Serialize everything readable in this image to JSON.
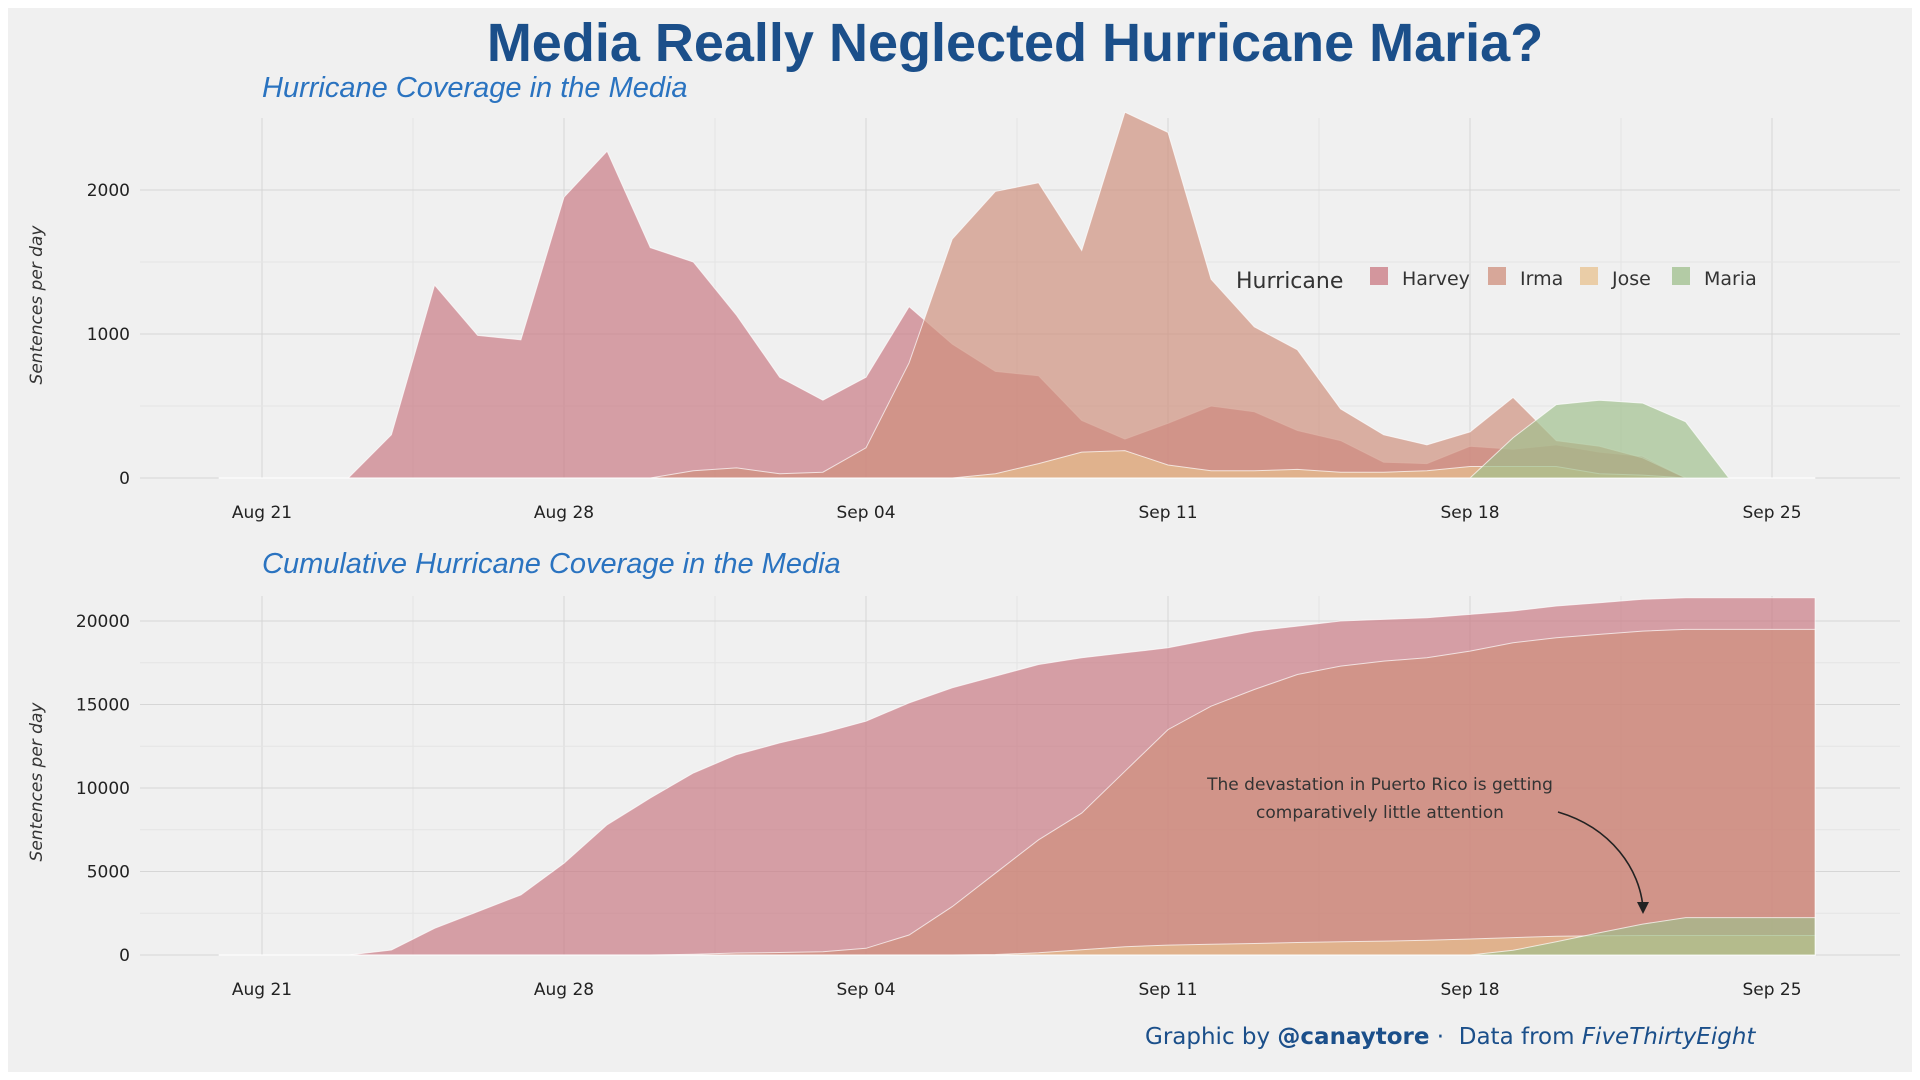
{
  "title": "Media Really Neglected Hurricane Maria?",
  "subtitles": {
    "top": "Hurricane Coverage in the Media",
    "bottom": "Cumulative Hurricane Coverage in the Media"
  },
  "ylabel": "Sentences per day",
  "legend": {
    "title": "Hurricane",
    "items": [
      {
        "name": "Harvey",
        "color": "#c97882"
      },
      {
        "name": "Irma",
        "color": "#cf8f7c"
      },
      {
        "name": "Jose",
        "color": "#e8c18f"
      },
      {
        "name": "Maria",
        "color": "#9fbf8c"
      }
    ]
  },
  "annotation": {
    "line1": "The devastation in Puerto Rico is getting",
    "line2": "comparatively little attention"
  },
  "caption": {
    "prefix": "Graphic by ",
    "handle": "@canaytore",
    "sep": " · ",
    "data_prefix": "Data from ",
    "source": "FiveThirtyEight"
  },
  "chart_data": [
    {
      "type": "area",
      "title": "Hurricane Coverage in the Media",
      "ylabel": "Sentences per day",
      "x_start": "2017-08-20",
      "x_ticks": [
        "Aug 21",
        "Aug 28",
        "Sep 04",
        "Sep 11",
        "Sep 18",
        "Sep 25"
      ],
      "y_ticks": [
        0,
        1000,
        2000
      ],
      "ylim": [
        0,
        2500
      ],
      "xlim": [
        "2017-08-18",
        "2017-09-27"
      ],
      "grid": true,
      "legend_position": "right",
      "series": [
        {
          "name": "Harvey",
          "values": [
            0,
            0,
            0,
            0,
            300,
            1340,
            990,
            960,
            1950,
            2270,
            1600,
            1500,
            1130,
            700,
            540,
            700,
            1190,
            930,
            740,
            710,
            400,
            270,
            380,
            500,
            460,
            330,
            260,
            110,
            100,
            220,
            200,
            230,
            180,
            150,
            0,
            0,
            0,
            0
          ]
        },
        {
          "name": "Irma",
          "values": [
            0,
            0,
            0,
            0,
            0,
            0,
            0,
            0,
            0,
            0,
            0,
            50,
            70,
            30,
            40,
            210,
            800,
            1660,
            1990,
            2050,
            1580,
            2540,
            2400,
            1380,
            1050,
            890,
            480,
            300,
            230,
            320,
            560,
            260,
            220,
            140,
            0,
            0,
            0,
            0
          ]
        },
        {
          "name": "Jose",
          "values": [
            0,
            0,
            0,
            0,
            0,
            0,
            0,
            0,
            0,
            0,
            0,
            0,
            0,
            0,
            0,
            0,
            0,
            0,
            30,
            100,
            180,
            190,
            90,
            50,
            50,
            60,
            40,
            40,
            50,
            80,
            80,
            80,
            30,
            20,
            0,
            0,
            0,
            0
          ]
        },
        {
          "name": "Maria",
          "values": [
            0,
            0,
            0,
            0,
            0,
            0,
            0,
            0,
            0,
            0,
            0,
            0,
            0,
            0,
            0,
            0,
            0,
            0,
            0,
            0,
            0,
            0,
            0,
            0,
            0,
            0,
            0,
            0,
            0,
            0,
            280,
            510,
            540,
            520,
            390,
            0,
            0,
            0
          ]
        }
      ]
    },
    {
      "type": "area",
      "title": "Cumulative Hurricane Coverage in the Media",
      "ylabel": "Sentences per day",
      "x_start": "2017-08-20",
      "x_ticks": [
        "Aug 21",
        "Aug 28",
        "Sep 04",
        "Sep 11",
        "Sep 18",
        "Sep 25"
      ],
      "y_ticks": [
        0,
        5000,
        10000,
        15000,
        20000
      ],
      "ylim": [
        0,
        21500
      ],
      "xlim": [
        "2017-08-18",
        "2017-09-27"
      ],
      "grid": true,
      "series": [
        {
          "name": "Harvey",
          "values": [
            0,
            0,
            0,
            0,
            300,
            1600,
            2600,
            3600,
            5500,
            7800,
            9400,
            10900,
            12000,
            12700,
            13300,
            14000,
            15100,
            16000,
            16700,
            17400,
            17800,
            18100,
            18400,
            18900,
            19400,
            19700,
            20000,
            20100,
            20200,
            20400,
            20600,
            20900,
            21100,
            21300,
            21400,
            21400,
            21400,
            21400
          ]
        },
        {
          "name": "Irma",
          "values": [
            0,
            0,
            0,
            0,
            0,
            0,
            0,
            0,
            0,
            0,
            0,
            50,
            120,
            150,
            190,
            400,
            1200,
            2900,
            4900,
            6900,
            8500,
            11000,
            13500,
            14900,
            15900,
            16800,
            17300,
            17600,
            17800,
            18200,
            18700,
            19000,
            19200,
            19400,
            19500,
            19500,
            19500,
            19500
          ]
        },
        {
          "name": "Jose",
          "values": [
            0,
            0,
            0,
            0,
            0,
            0,
            0,
            0,
            0,
            0,
            0,
            0,
            0,
            0,
            0,
            0,
            0,
            0,
            30,
            130,
            310,
            500,
            590,
            640,
            690,
            750,
            790,
            830,
            880,
            960,
            1040,
            1120,
            1150,
            1170,
            1170,
            1170,
            1170,
            1170
          ]
        },
        {
          "name": "Maria",
          "values": [
            0,
            0,
            0,
            0,
            0,
            0,
            0,
            0,
            0,
            0,
            0,
            0,
            0,
            0,
            0,
            0,
            0,
            0,
            0,
            0,
            0,
            0,
            0,
            0,
            0,
            0,
            0,
            0,
            0,
            0,
            280,
            790,
            1330,
            1850,
            2240,
            2240,
            2240,
            2240
          ]
        }
      ]
    }
  ]
}
